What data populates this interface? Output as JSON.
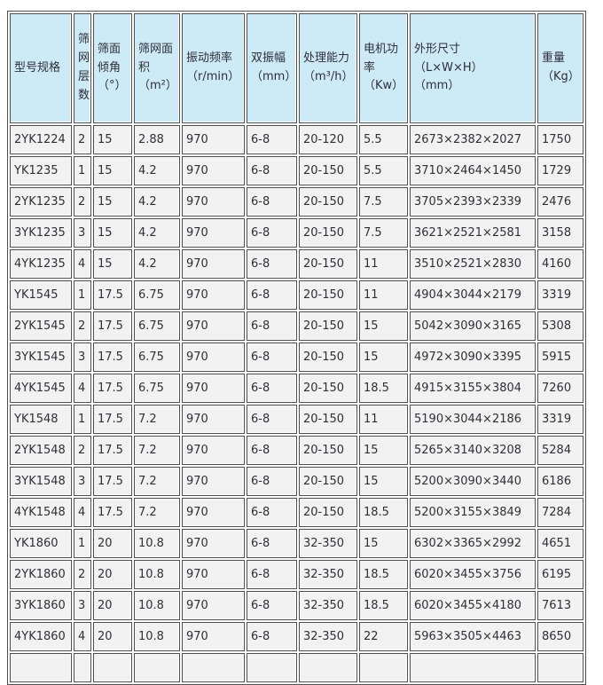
{
  "colors": {
    "header_bg": "#cdeaf7",
    "cell_bg": "#f2f2f2",
    "border": "#4f4f4f",
    "text": "#2f2f38"
  },
  "table": {
    "headers": [
      "型号规格",
      "筛\n网\n层\n数",
      "筛面\n倾角\n（°）",
      "筛网面\n积\n（m²）",
      "振动频率\n（r/min）",
      "双振幅\n（mm）",
      "处理能力\n（m³/h）",
      "电机功\n率\n（Kw）",
      "外形尺寸\n（L×W×H）\n（mm）",
      "重量\n（Kg）"
    ],
    "rows": [
      [
        "2YK1224",
        "2",
        "15",
        "2.88",
        "970",
        "6-8",
        "20-120",
        "5.5",
        "2673×2382×2027",
        "1750"
      ],
      [
        "YK1235",
        "1",
        "15",
        "4.2",
        "970",
        "6-8",
        "20-150",
        "5.5",
        "3710×2464×1450",
        "1729"
      ],
      [
        "2YK1235",
        "2",
        "15",
        "4.2",
        "970",
        "6-8",
        "20-150",
        "7.5",
        "3705×2393×2339",
        "2476"
      ],
      [
        "3YK1235",
        "3",
        "15",
        "4.2",
        "970",
        "6-8",
        "20-150",
        "7.5",
        "3621×2521×2581",
        "3158"
      ],
      [
        "4YK1235",
        "4",
        "15",
        "4.2",
        "970",
        "6-8",
        "20-150",
        "11",
        "3510×2521×2830",
        "4160"
      ],
      [
        "YK1545",
        "1",
        "17.5",
        "6.75",
        "970",
        "6-8",
        "20-150",
        "11",
        "4904×3044×2179",
        "3319"
      ],
      [
        "2YK1545",
        "2",
        "17.5",
        "6.75",
        "970",
        "6-8",
        "20-150",
        "15",
        "5042×3090×3165",
        "5308"
      ],
      [
        "3YK1545",
        "3",
        "17.5",
        "6.75",
        "970",
        "6-8",
        "20-150",
        "15",
        "4972×3090×3395",
        "5915"
      ],
      [
        "4YK1545",
        "4",
        "17.5",
        "6.75",
        "970",
        "6-8",
        "20-150",
        "18.5",
        "4915×3155×3804",
        "7260"
      ],
      [
        "YK1548",
        "1",
        "17.5",
        "7.2",
        "970",
        "6-8",
        "20-150",
        "11",
        "5190×3044×2186",
        "3319"
      ],
      [
        "2YK1548",
        "2",
        "17.5",
        "7.2",
        "970",
        "6-8",
        "20-150",
        "15",
        "5265×3140×3208",
        "5284"
      ],
      [
        "3YK1548",
        "3",
        "17.5",
        "7.2",
        "970",
        "6-8",
        "20-150",
        "15",
        "5200×3090×3440",
        "6186"
      ],
      [
        "4YK1548",
        "4",
        "17.5",
        "7.2",
        "970",
        "6-8",
        "20-150",
        "18.5",
        "5200×3155×3849",
        "7284"
      ],
      [
        "YK1860",
        "1",
        "20",
        "10.8",
        "970",
        "6-8",
        "32-350",
        "15",
        "6302×3365×2992",
        "4651"
      ],
      [
        "2YK1860",
        "2",
        "20",
        "10.8",
        "970",
        "6-8",
        "32-350",
        "18.5",
        "6020×3455×3756",
        "6195"
      ],
      [
        "3YK1860",
        "3",
        "20",
        "10.8",
        "970",
        "6-8",
        "32-350",
        "18.5",
        "6020×3455×4180",
        "7613"
      ],
      [
        "4YK1860",
        "4",
        "20",
        "10.8",
        "970",
        "6-8",
        "32-350",
        "22",
        "5963×3505×4463",
        "8650"
      ]
    ],
    "partial_bottom_row": true
  }
}
